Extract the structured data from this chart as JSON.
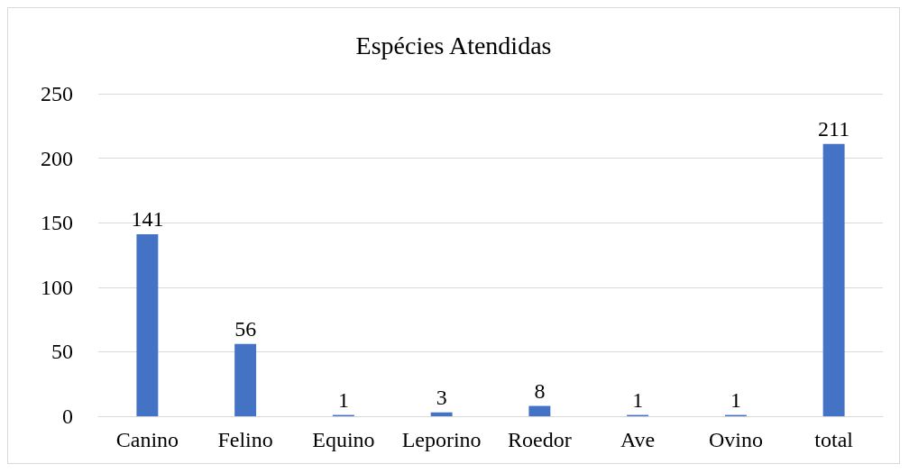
{
  "chart_data": {
    "type": "bar",
    "title": "Espécies Atendidas",
    "categories": [
      "Canino",
      "Felino",
      "Equino",
      "Leporino",
      "Roedor",
      "Ave",
      "Ovino",
      "total"
    ],
    "values": [
      141,
      56,
      1,
      3,
      8,
      1,
      1,
      211
    ],
    "color": "#4472c4",
    "ylim": [
      0,
      250
    ],
    "yticks": [
      0,
      50,
      100,
      150,
      200,
      250
    ],
    "grid": "y",
    "data_labels": true
  }
}
